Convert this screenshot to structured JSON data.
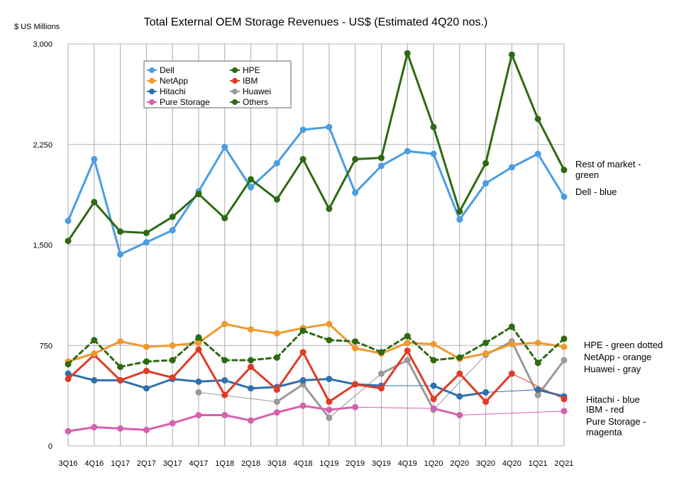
{
  "chart_data": {
    "type": "line",
    "title": "Total External OEM Storage Revenues - US$ (Estimated 4Q20 nos.)",
    "ylabel": "$ US Millions",
    "xlabel": "",
    "ylim": [
      0,
      3000
    ],
    "yticks": [
      0,
      750,
      1500,
      2250,
      3000
    ],
    "ytick_labels": [
      "0",
      "750",
      "1,500",
      "2,250",
      "3,000"
    ],
    "grid": "vertical",
    "legend_position": "top-left",
    "categories": [
      "3Q16",
      "4Q16",
      "1Q17",
      "2Q17",
      "3Q17",
      "4Q17",
      "1Q18",
      "2Q18",
      "3Q18",
      "4Q18",
      "1Q19",
      "2Q19",
      "3Q19",
      "4Q19",
      "1Q20",
      "2Q20",
      "3Q20",
      "4Q20",
      "1Q21",
      "2Q21"
    ],
    "series": [
      {
        "name": "Dell",
        "color": "#4a9de3",
        "dash": false,
        "values": [
          1680,
          2140,
          1430,
          1520,
          1610,
          1900,
          2230,
          1930,
          2110,
          2360,
          2380,
          1890,
          2090,
          2200,
          2180,
          1690,
          1960,
          2080,
          2180,
          1860
        ]
      },
      {
        "name": "NetApp",
        "color": "#f0992e",
        "dash": false,
        "values": [
          630,
          690,
          780,
          740,
          750,
          770,
          910,
          870,
          840,
          880,
          910,
          730,
          690,
          770,
          760,
          650,
          690,
          760,
          770,
          740
        ]
      },
      {
        "name": "Hitachi",
        "color": "#2f6fad",
        "dash": false,
        "values": [
          540,
          490,
          490,
          430,
          500,
          480,
          490,
          430,
          440,
          490,
          500,
          460,
          450,
          null,
          450,
          370,
          400,
          null,
          420,
          370
        ]
      },
      {
        "name": "Pure Storage",
        "color": "#d660ad",
        "dash": false,
        "values": [
          110,
          140,
          130,
          120,
          170,
          230,
          230,
          190,
          250,
          300,
          270,
          290,
          null,
          null,
          280,
          230,
          null,
          null,
          null,
          260
        ]
      },
      {
        "name": "HPE",
        "color": "#2d6a12",
        "dash": true,
        "values": [
          610,
          790,
          590,
          630,
          640,
          810,
          640,
          640,
          660,
          860,
          790,
          780,
          700,
          820,
          640,
          660,
          770,
          890,
          620,
          800
        ]
      },
      {
        "name": "IBM",
        "color": "#e03b24",
        "dash": false,
        "values": [
          500,
          680,
          490,
          560,
          510,
          720,
          380,
          590,
          420,
          700,
          330,
          460,
          430,
          710,
          350,
          540,
          330,
          540,
          null,
          350
        ]
      },
      {
        "name": "Huawei",
        "color": "#999999",
        "dash": false,
        "values": [
          null,
          null,
          null,
          null,
          null,
          400,
          null,
          null,
          330,
          460,
          210,
          null,
          540,
          640,
          270,
          null,
          680,
          780,
          380,
          640
        ]
      },
      {
        "name": "Others",
        "color": "#2d6a12",
        "dash": false,
        "values": [
          1530,
          1820,
          1600,
          1590,
          1710,
          1880,
          1700,
          1990,
          1840,
          2140,
          1770,
          2140,
          2150,
          2930,
          2380,
          1750,
          2110,
          2920,
          2440,
          2060
        ]
      }
    ],
    "annotations": [
      {
        "lines": [
          "Rest of market -",
          "green"
        ]
      },
      {
        "lines": [
          "Dell - blue"
        ]
      },
      {
        "lines": [
          "HPE - green dotted"
        ]
      },
      {
        "lines": [
          "NetApp - orange"
        ]
      },
      {
        "lines": [
          "Huawei - gray"
        ]
      },
      {
        "lines": [
          "Hitachi - blue"
        ]
      },
      {
        "lines": [
          "IBM - red"
        ]
      },
      {
        "lines": [
          "Pure Storage -",
          "magenta"
        ]
      }
    ]
  }
}
